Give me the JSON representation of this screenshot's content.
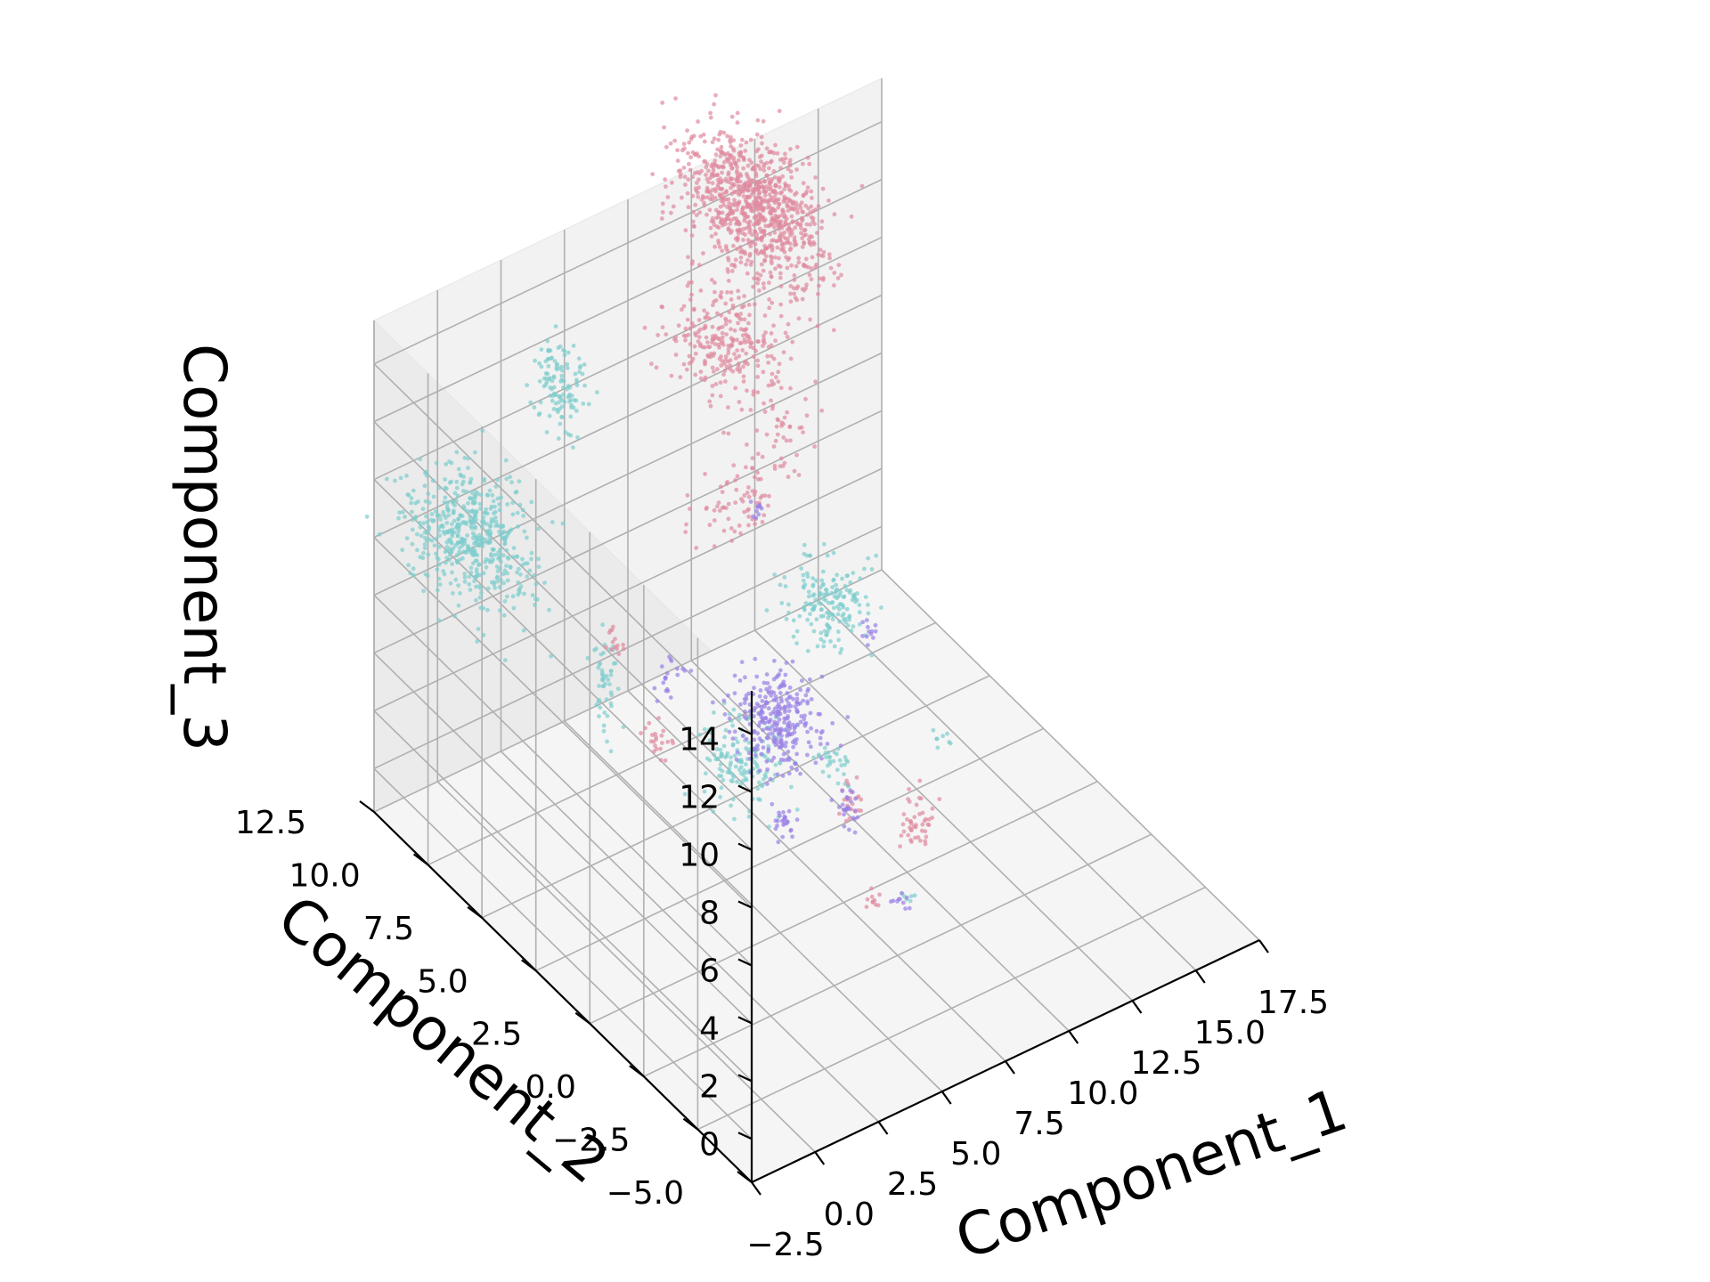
{
  "chart_data": {
    "type": "scatter",
    "projection": "3d",
    "title": "",
    "xlabel": "Component_1",
    "ylabel": "Component_2",
    "zlabel": "Component_3",
    "xlim": [
      -2.5,
      17.5
    ],
    "ylim": [
      -5.0,
      12.5
    ],
    "zlim": [
      -1.5,
      15.5
    ],
    "x_ticks": [
      "−2.5",
      "0.0",
      "2.5",
      "5.0",
      "7.5",
      "10.0",
      "12.5",
      "15.0",
      "17.5"
    ],
    "y_ticks": [
      "−5.0",
      "−2.5",
      "0.0",
      "2.5",
      "5.0",
      "7.5",
      "10.0",
      "12.5"
    ],
    "z_ticks": [
      "0",
      "2",
      "4",
      "6",
      "8",
      "10",
      "12",
      "14"
    ],
    "grid": true,
    "legend": "none",
    "colors": {
      "teal": "#7fcdcd",
      "pink": "#e08a9e",
      "purple": "#9a80e6",
      "pane": "#f2f2f2",
      "grid": "#b0b0b0"
    },
    "series": [
      {
        "color": "teal",
        "clusters": [
          {
            "x": 0.8,
            "y": 12.0,
            "z": 7.0,
            "sx": 0.9,
            "sy": 1.1,
            "sz": 0.8,
            "n": 520
          },
          {
            "x": 4.5,
            "y": 12.2,
            "z": 10.5,
            "sx": 0.3,
            "sy": 0.5,
            "sz": 0.8,
            "n": 120
          },
          {
            "x": 3.3,
            "y": 8.6,
            "z": 3.2,
            "sx": 0.2,
            "sy": 0.3,
            "sz": 0.8,
            "n": 50
          },
          {
            "x": 5.2,
            "y": 4.4,
            "z": 3.0,
            "sx": 0.6,
            "sy": 0.6,
            "sz": 0.6,
            "n": 150
          },
          {
            "x": 8.2,
            "y": 4.0,
            "z": 7.4,
            "sx": 0.6,
            "sy": 0.6,
            "sz": 0.6,
            "n": 170
          },
          {
            "x": 7.2,
            "y": 2.5,
            "z": 3.3,
            "sx": 0.3,
            "sy": 0.3,
            "sz": 0.2,
            "n": 30
          },
          {
            "x": 10.0,
            "y": 1.0,
            "z": 4.1,
            "sx": 0.15,
            "sy": 0.15,
            "sz": 0.15,
            "n": 8
          },
          {
            "x": 7.0,
            "y": -1.0,
            "z": 1.5,
            "sx": 0.1,
            "sy": 0.1,
            "sz": 0.1,
            "n": 6
          },
          {
            "x": 14.0,
            "y": 9.5,
            "z": 1.0,
            "sx": 0.15,
            "sy": 0.15,
            "sz": 0.15,
            "n": 6
          }
        ]
      },
      {
        "color": "pink",
        "clusters": [
          {
            "x": 13.8,
            "y": 14.0,
            "z": 11.5,
            "sx": 0.8,
            "sy": 1.3,
            "sz": 0.9,
            "n": 900
          },
          {
            "x": 11.0,
            "y": 12.0,
            "z": 9.5,
            "sx": 0.9,
            "sy": 0.9,
            "sz": 0.7,
            "n": 280
          },
          {
            "x": 10.0,
            "y": 8.5,
            "z": 9.2,
            "sx": 0.7,
            "sy": 0.4,
            "sz": 0.7,
            "n": 45
          },
          {
            "x": 8.0,
            "y": 8.0,
            "z": 8.0,
            "sx": 0.7,
            "sy": 0.3,
            "sz": 0.7,
            "n": 70
          },
          {
            "x": 3.9,
            "y": 9.0,
            "z": 4.3,
            "sx": 0.2,
            "sy": 0.2,
            "sz": 0.2,
            "n": 14
          },
          {
            "x": 4.0,
            "y": 7.0,
            "z": 2.2,
            "sx": 0.2,
            "sy": 0.2,
            "sz": 0.3,
            "n": 22
          },
          {
            "x": 8.2,
            "y": 3.0,
            "z": 1.3,
            "sx": 0.2,
            "sy": 0.2,
            "sz": 0.3,
            "n": 22
          },
          {
            "x": 10.4,
            "y": 2.5,
            "z": 0.2,
            "sx": 0.25,
            "sy": 0.25,
            "sz": 0.5,
            "n": 45
          },
          {
            "x": 7.5,
            "y": 1.2,
            "z": -0.5,
            "sx": 0.15,
            "sy": 0.15,
            "sz": 0.15,
            "n": 10
          }
        ]
      },
      {
        "color": "purple",
        "clusters": [
          {
            "x": 6.8,
            "y": 4.8,
            "z": 3.4,
            "sx": 0.7,
            "sy": 0.6,
            "sz": 0.7,
            "n": 280
          },
          {
            "x": 4.8,
            "y": 7.5,
            "z": 3.6,
            "sx": 0.3,
            "sy": 0.3,
            "sz": 0.3,
            "n": 20
          },
          {
            "x": 5.5,
            "y": 3.0,
            "z": 1.7,
            "sx": 0.2,
            "sy": 0.2,
            "sz": 0.2,
            "n": 25
          },
          {
            "x": 8.6,
            "y": 7.8,
            "z": 7.8,
            "sx": 0.15,
            "sy": 0.15,
            "sz": 0.15,
            "n": 10
          },
          {
            "x": 8.0,
            "y": 3.0,
            "z": 1.2,
            "sx": 0.3,
            "sy": 0.3,
            "sz": 0.2,
            "n": 25
          },
          {
            "x": 12.8,
            "y": 7.5,
            "z": 2.0,
            "sx": 0.15,
            "sy": 0.15,
            "sz": 0.15,
            "n": 12
          },
          {
            "x": 8.0,
            "y": 0.5,
            "z": -0.2,
            "sx": 0.15,
            "sy": 0.15,
            "sz": 0.15,
            "n": 10
          }
        ]
      }
    ]
  }
}
